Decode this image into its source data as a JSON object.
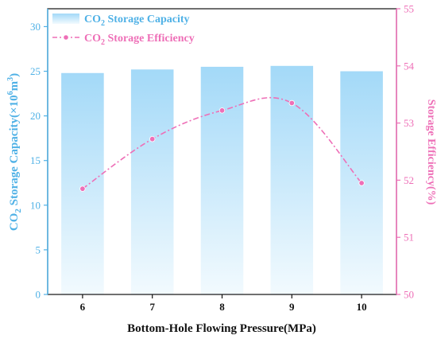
{
  "chart_data": {
    "type": "bar+line",
    "categories": [
      "6",
      "7",
      "8",
      "9",
      "10"
    ],
    "xlabel": "Bottom-Hole Flowing Pressure(MPa)",
    "ylabel_left": {
      "pre": "CO",
      "sub": "2",
      "post": " Storage Capacity(×10",
      "sup": "6",
      "post2": "m",
      "sup2": "3",
      "post3": ")"
    },
    "ylabel_right": "Storage Efficiency(%)",
    "ylim_left": [
      0,
      32
    ],
    "yticks_left": [
      "0",
      "5",
      "10",
      "15",
      "20",
      "25",
      "30"
    ],
    "ylim_right": [
      50,
      55
    ],
    "yticks_right": [
      "50",
      "51",
      "52",
      "53",
      "54",
      "55"
    ],
    "series": [
      {
        "name_pre": "CO",
        "name_sub": "2",
        "name_post": " Storage Capacity",
        "type": "bar",
        "axis": "left",
        "values": [
          24.8,
          25.2,
          25.5,
          25.6,
          25.0
        ],
        "color": "#9fd6f7"
      },
      {
        "name_pre": "CO",
        "name_sub": "2",
        "name_post": " Storage Efficiency",
        "type": "line",
        "axis": "right",
        "values": [
          51.85,
          52.72,
          53.22,
          53.35,
          51.95
        ],
        "color": "#ee6fb7"
      }
    ],
    "legend_position": "top-left",
    "colors": {
      "left_axis": "#4fb1e6",
      "right_axis": "#ee6fb7",
      "bar_top": "#a3d9f8",
      "bar_bottom": "#f2fafe"
    }
  }
}
